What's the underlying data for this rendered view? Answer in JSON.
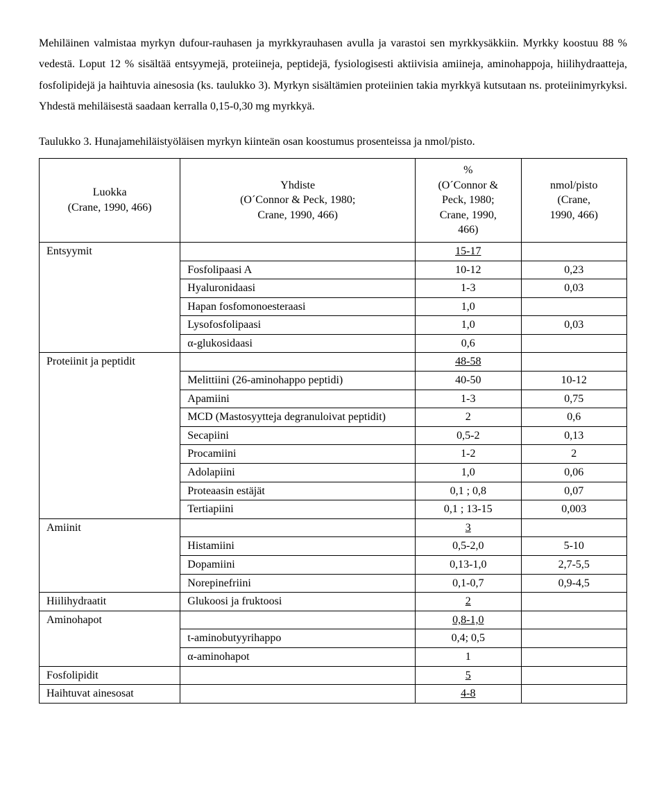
{
  "paragraph1": "Mehiläinen valmistaa myrkyn dufour-rauhasen ja myrkkyrauhasen avulla ja varastoi sen myrkkysäkkiin. Myrkky koostuu 88 % vedestä. Loput 12 % sisältää entsyymejä, proteiineja, peptidejä, fysiologisesti aktiivisia amiineja, aminohappoja, hiilihydraatteja, fosfolipidejä ja haihtuvia ainesosia (ks. taulukko 3). Myrkyn sisältämien proteiinien takia myrkkyä kutsutaan ns. proteiinimyrkyksi. Yhdestä mehiläisestä saadaan kerralla 0,15-0,30 mg myrkkyä.",
  "caption": "Taulukko 3. Hunajamehiläistyöläisen myrkyn kiinteän osan koostumus prosenteissa ja nmol/pisto.",
  "headers": {
    "col1_l1": "Luokka",
    "col1_l2": "(Crane, 1990, 466)",
    "col2_l1": "Yhdiste",
    "col2_l2": "(O´Connor & Peck, 1980;",
    "col2_l3": "Crane, 1990, 466)",
    "col3_l1": "%",
    "col3_l2": "(O´Connor &",
    "col3_l3": "Peck, 1980;",
    "col3_l4": "Crane, 1990,",
    "col3_l5": "466)",
    "col4_l1": "nmol/pisto",
    "col4_l2": "(Crane,",
    "col4_l3": "1990, 466)"
  },
  "groups": [
    {
      "name": "Entsyymit",
      "total_pct": "15-17",
      "items": [
        {
          "name": "Fosfolipaasi A",
          "pct": "10-12",
          "nmol": "0,23"
        },
        {
          "name": "Hyaluronidaasi",
          "pct": "1-3",
          "nmol": "0,03"
        },
        {
          "name": "Hapan fosfomonoesteraasi",
          "pct": "1,0",
          "nmol": ""
        },
        {
          "name": "Lysofosfolipaasi",
          "pct": "1,0",
          "nmol": "0,03"
        },
        {
          "name": "α-glukosidaasi",
          "pct": "0,6",
          "nmol": ""
        }
      ]
    },
    {
      "name": "Proteiinit ja peptidit",
      "total_pct": "48-58",
      "items": [
        {
          "name": "Melittiini (26-aminohappo peptidi)",
          "pct": "40-50",
          "nmol": "10-12"
        },
        {
          "name": "Apamiini",
          "pct": "1-3",
          "nmol": "0,75"
        },
        {
          "name": "MCD (Mastosyytteja degranuloivat peptidit)",
          "pct": "2",
          "nmol": "0,6"
        },
        {
          "name": "Secapiini",
          "pct": "0,5-2",
          "nmol": "0,13"
        },
        {
          "name": "Procamiini",
          "pct": "1-2",
          "nmol": "2"
        },
        {
          "name": "Adolapiini",
          "pct": "1,0",
          "nmol": "0,06"
        },
        {
          "name": "Proteaasin estäjät",
          "pct": "0,1 ; 0,8",
          "nmol": "0,07"
        },
        {
          "name": "Tertiapiini",
          "pct": "0,1 ; 13-15",
          "nmol": "0,003"
        }
      ]
    },
    {
      "name": "Amiinit",
      "total_pct": "3",
      "items": [
        {
          "name": "Histamiini",
          "pct": "0,5-2,0",
          "nmol": "5-10"
        },
        {
          "name": "Dopamiini",
          "pct": "0,13-1,0",
          "nmol": "2,7-5,5"
        },
        {
          "name": "Norepinefriini",
          "pct": "0,1-0,7",
          "nmol": "0,9-4,5"
        }
      ]
    },
    {
      "name": "Hiilihydraatit",
      "single_compound": "Glukoosi ja fruktoosi",
      "total_pct": "2",
      "items": []
    },
    {
      "name": "Aminohapot",
      "total_pct": "0,8-1,0",
      "items": [
        {
          "name": "t-aminobutyyrihappo",
          "pct": "0,4; 0,5",
          "nmol": ""
        },
        {
          "name": "α-aminohapot",
          "pct": "1",
          "nmol": ""
        }
      ]
    },
    {
      "name": "Fosfolipidit",
      "total_pct": "5",
      "items": []
    },
    {
      "name": "Haihtuvat ainesosat",
      "total_pct": "4-8",
      "items": []
    }
  ]
}
